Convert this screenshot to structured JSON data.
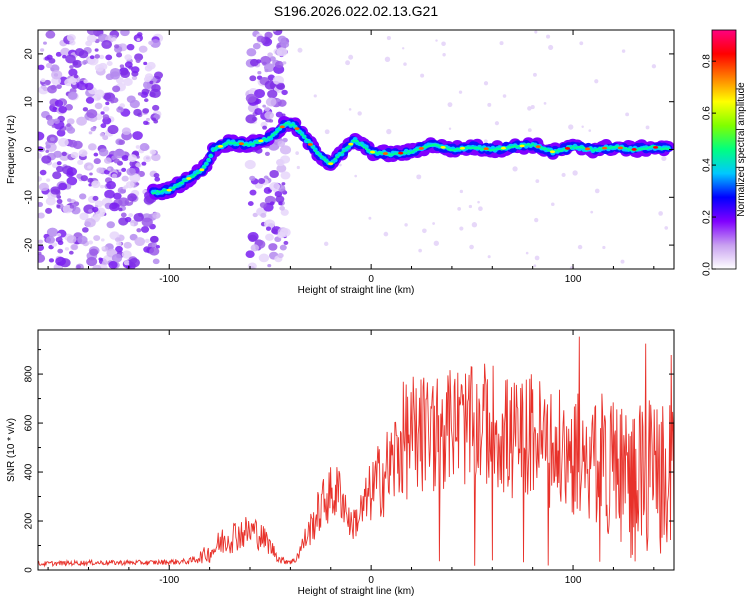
{
  "figure_title": "S196.2026.022.02.13.G21",
  "chart_data": [
    {
      "type": "heatmap",
      "title": "S196.2026.022.02.13.G21",
      "xlabel": "Height of straight line (km)",
      "ylabel": "Frequency (Hz)",
      "xlim": [
        -165,
        150
      ],
      "ylim": [
        -25,
        25
      ],
      "xticks": [
        -100,
        0,
        100
      ],
      "yticks": [
        -20,
        -10,
        0,
        10,
        20
      ],
      "colorbar": {
        "label": "Normalized spectral amplitude",
        "range": [
          0,
          0.92
        ],
        "ticks": [
          0.0,
          0.2,
          0.4,
          0.6,
          0.8
        ],
        "colors": [
          "#ffffff",
          "#c8a0f0",
          "#8000ff",
          "#0000ff",
          "#00c8ff",
          "#00ff80",
          "#80ff00",
          "#ffff00",
          "#ff8000",
          "#ff0000",
          "#ff0080"
        ]
      },
      "signal_trace": {
        "x": [
          -108,
          -100,
          -90,
          -83,
          -78,
          -70,
          -60,
          -50,
          -42,
          -38,
          -32,
          -26,
          -20,
          -14,
          -8,
          0,
          10,
          20,
          30,
          40,
          50,
          60,
          70,
          80,
          90,
          100,
          110,
          120,
          130,
          140,
          148
        ],
        "y": [
          -9,
          -8.5,
          -6,
          -4,
          0,
          1.5,
          1,
          2.5,
          5.5,
          5,
          2,
          -1,
          -3,
          -0.5,
          2,
          -0.5,
          -1,
          -0.5,
          1,
          0,
          0.5,
          0,
          0.5,
          1,
          -0.5,
          0.5,
          0,
          0.5,
          0,
          0.5,
          0
        ]
      },
      "noise_regions_km": [
        [
          -165,
          -105
        ],
        [
          -60,
          -42
        ]
      ]
    },
    {
      "type": "line",
      "xlabel": "Height of straight line (km)",
      "ylabel": "SNR (10 * v/v)",
      "xlim": [
        -165,
        150
      ],
      "ylim": [
        0,
        980
      ],
      "xticks": [
        -100,
        0,
        100
      ],
      "yticks": [
        0,
        200,
        400,
        600,
        800
      ],
      "series": [
        {
          "name": "SNR",
          "color": "#e8312a",
          "x": [
            -165,
            -140,
            -110,
            -90,
            -80,
            -72,
            -65,
            -58,
            -52,
            -45,
            -38,
            -30,
            -22,
            -15,
            -10,
            -5,
            0,
            5,
            10,
            15,
            20,
            30,
            40,
            50,
            60,
            70,
            80,
            90,
            100,
            110,
            120,
            130,
            140,
            150
          ],
          "y": [
            25,
            30,
            30,
            35,
            70,
            130,
            150,
            160,
            120,
            40,
            35,
            170,
            300,
            320,
            180,
            230,
            320,
            380,
            420,
            520,
            550,
            560,
            600,
            580,
            600,
            520,
            560,
            480,
            470,
            450,
            430,
            350,
            380,
            380
          ],
          "noise_amplitude": [
            10,
            10,
            10,
            12,
            40,
            70,
            70,
            70,
            50,
            15,
            15,
            70,
            120,
            120,
            60,
            100,
            130,
            170,
            200,
            240,
            260,
            260,
            250,
            250,
            260,
            260,
            260,
            260,
            260,
            270,
            300,
            320,
            320,
            300
          ]
        }
      ]
    }
  ]
}
